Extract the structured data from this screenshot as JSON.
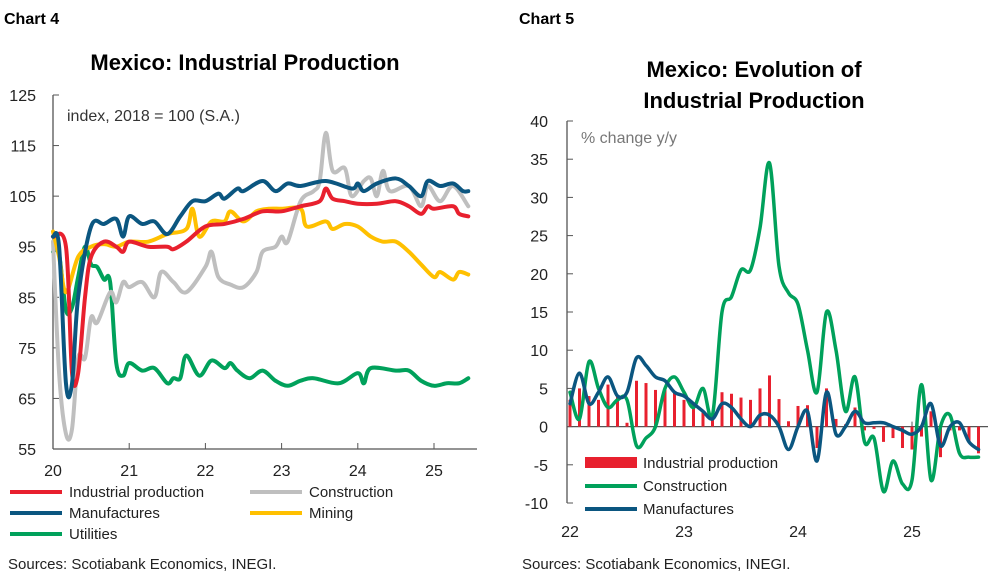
{
  "chart_data": [
    {
      "type": "line",
      "header": "Chart 4",
      "title": "Mexico: Industrial Production",
      "annotation": "index, 2018 = 100 (S.A.)",
      "source": "Sources: Scotiabank Economics, INEGI.",
      "xlim": [
        2020,
        2025.6
      ],
      "ylim": [
        55,
        125
      ],
      "x_tick_labels": [
        "20",
        "21",
        "22",
        "23",
        "24",
        "25"
      ],
      "y_ticks": [
        55,
        65,
        75,
        85,
        95,
        105,
        115,
        125
      ],
      "grid": false,
      "legend": "bottom",
      "series": [
        {
          "name": "Industrial production",
          "color": "#e8202e",
          "points": [
            [
              2020.0,
              97
            ],
            [
              2020.17,
              95
            ],
            [
              2020.25,
              70
            ],
            [
              2020.33,
              70
            ],
            [
              2020.42,
              85
            ],
            [
              2020.5,
              93
            ],
            [
              2020.67,
              96
            ],
            [
              2020.83,
              95
            ],
            [
              2020.92,
              94
            ],
            [
              2021.0,
              96
            ],
            [
              2021.25,
              95
            ],
            [
              2021.5,
              95
            ],
            [
              2021.58,
              94.5
            ],
            [
              2021.75,
              96
            ],
            [
              2022.0,
              99
            ],
            [
              2022.25,
              99.5
            ],
            [
              2022.5,
              100.5
            ],
            [
              2022.75,
              102
            ],
            [
              2023.0,
              102
            ],
            [
              2023.25,
              103
            ],
            [
              2023.5,
              104
            ],
            [
              2023.58,
              106.5
            ],
            [
              2023.67,
              104.5
            ],
            [
              2023.83,
              104
            ],
            [
              2024.0,
              103.5
            ],
            [
              2024.25,
              103.5
            ],
            [
              2024.5,
              104
            ],
            [
              2024.67,
              103
            ],
            [
              2024.83,
              101.5
            ],
            [
              2024.92,
              103
            ],
            [
              2025.0,
              102.5
            ],
            [
              2025.25,
              103
            ],
            [
              2025.33,
              101.5
            ],
            [
              2025.45,
              101
            ]
          ]
        },
        {
          "name": "Construction",
          "color": "#bfbfbf",
          "points": [
            [
              2020.0,
              96
            ],
            [
              2020.08,
              70
            ],
            [
              2020.17,
              58
            ],
            [
              2020.25,
              59
            ],
            [
              2020.33,
              73
            ],
            [
              2020.42,
              73
            ],
            [
              2020.5,
              81
            ],
            [
              2020.58,
              80
            ],
            [
              2020.75,
              86
            ],
            [
              2020.83,
              84
            ],
            [
              2020.92,
              88
            ],
            [
              2021.0,
              87
            ],
            [
              2021.17,
              88
            ],
            [
              2021.33,
              85
            ],
            [
              2021.42,
              90
            ],
            [
              2021.58,
              88
            ],
            [
              2021.75,
              86
            ],
            [
              2022.0,
              91
            ],
            [
              2022.08,
              94
            ],
            [
              2022.17,
              89
            ],
            [
              2022.33,
              87.5
            ],
            [
              2022.5,
              87
            ],
            [
              2022.67,
              90
            ],
            [
              2022.75,
              94
            ],
            [
              2022.92,
              95
            ],
            [
              2023.0,
              97
            ],
            [
              2023.08,
              96
            ],
            [
              2023.25,
              104
            ],
            [
              2023.42,
              106
            ],
            [
              2023.5,
              108
            ],
            [
              2023.58,
              117.5
            ],
            [
              2023.67,
              110
            ],
            [
              2023.83,
              110.5
            ],
            [
              2023.92,
              105
            ],
            [
              2024.08,
              108
            ],
            [
              2024.17,
              108.5
            ],
            [
              2024.25,
              105
            ],
            [
              2024.33,
              110
            ],
            [
              2024.42,
              106
            ],
            [
              2024.67,
              107
            ],
            [
              2024.83,
              103
            ],
            [
              2024.92,
              107
            ],
            [
              2025.08,
              104
            ],
            [
              2025.25,
              107
            ],
            [
              2025.45,
              103
            ]
          ]
        },
        {
          "name": "Manufactures",
          "color": "#0b5680",
          "points": [
            [
              2020.0,
              97
            ],
            [
              2020.08,
              95
            ],
            [
              2020.17,
              68
            ],
            [
              2020.25,
              68
            ],
            [
              2020.33,
              85
            ],
            [
              2020.5,
              99
            ],
            [
              2020.67,
              99.5
            ],
            [
              2020.83,
              100.5
            ],
            [
              2020.92,
              97
            ],
            [
              2021.0,
              101
            ],
            [
              2021.17,
              99.5
            ],
            [
              2021.33,
              100
            ],
            [
              2021.5,
              97.5
            ],
            [
              2021.67,
              101
            ],
            [
              2021.83,
              104
            ],
            [
              2022.0,
              104
            ],
            [
              2022.17,
              105.5
            ],
            [
              2022.25,
              104.5
            ],
            [
              2022.42,
              106.5
            ],
            [
              2022.5,
              106
            ],
            [
              2022.75,
              108
            ],
            [
              2022.92,
              106
            ],
            [
              2023.08,
              107.5
            ],
            [
              2023.25,
              107
            ],
            [
              2023.58,
              108
            ],
            [
              2023.92,
              106.5
            ],
            [
              2024.0,
              107.5
            ],
            [
              2024.08,
              106
            ],
            [
              2024.25,
              107.5
            ],
            [
              2024.5,
              108.5
            ],
            [
              2024.67,
              107
            ],
            [
              2024.83,
              105
            ],
            [
              2024.92,
              108
            ],
            [
              2025.08,
              107
            ],
            [
              2025.25,
              107.5
            ],
            [
              2025.38,
              106
            ],
            [
              2025.45,
              106
            ]
          ]
        },
        {
          "name": "Mining",
          "color": "#ffc000",
          "points": [
            [
              2020.0,
              98
            ],
            [
              2020.08,
              93
            ],
            [
              2020.17,
              86
            ],
            [
              2020.33,
              93
            ],
            [
              2020.5,
              95
            ],
            [
              2020.67,
              95.5
            ],
            [
              2020.83,
              95
            ],
            [
              2021.0,
              96
            ],
            [
              2021.25,
              96
            ],
            [
              2021.5,
              97.5
            ],
            [
              2021.75,
              98.5
            ],
            [
              2021.83,
              102.5
            ],
            [
              2021.92,
              97
            ],
            [
              2022.08,
              100
            ],
            [
              2022.25,
              100
            ],
            [
              2022.33,
              102
            ],
            [
              2022.5,
              100
            ],
            [
              2022.67,
              102
            ],
            [
              2022.83,
              102.5
            ],
            [
              2023.0,
              102.5
            ],
            [
              2023.25,
              102.5
            ],
            [
              2023.33,
              99
            ],
            [
              2023.58,
              100
            ],
            [
              2023.67,
              98.5
            ],
            [
              2023.83,
              99.5
            ],
            [
              2024.0,
              99
            ],
            [
              2024.17,
              97
            ],
            [
              2024.33,
              96
            ],
            [
              2024.5,
              96
            ],
            [
              2024.67,
              94
            ],
            [
              2024.83,
              91.5
            ],
            [
              2025.0,
              89
            ],
            [
              2025.08,
              90
            ],
            [
              2025.25,
              88.5
            ],
            [
              2025.33,
              90
            ],
            [
              2025.45,
              89.5
            ]
          ]
        },
        {
          "name": "Utilities",
          "color": "#00a15b",
          "points": [
            [
              2020.0,
              94
            ],
            [
              2020.08,
              93.5
            ],
            [
              2020.17,
              82.5
            ],
            [
              2020.25,
              83
            ],
            [
              2020.33,
              89
            ],
            [
              2020.42,
              95
            ],
            [
              2020.5,
              91.5
            ],
            [
              2020.58,
              91
            ],
            [
              2020.67,
              88.5
            ],
            [
              2020.75,
              88
            ],
            [
              2020.83,
              72
            ],
            [
              2020.92,
              69.5
            ],
            [
              2021.0,
              72
            ],
            [
              2021.17,
              70.5
            ],
            [
              2021.33,
              71
            ],
            [
              2021.5,
              68
            ],
            [
              2021.58,
              69
            ],
            [
              2021.67,
              69
            ],
            [
              2021.75,
              73.5
            ],
            [
              2021.92,
              69.5
            ],
            [
              2022.08,
              72.5
            ],
            [
              2022.25,
              71
            ],
            [
              2022.33,
              72
            ],
            [
              2022.42,
              70.5
            ],
            [
              2022.58,
              69
            ],
            [
              2022.75,
              70.5
            ],
            [
              2022.92,
              68.5
            ],
            [
              2023.08,
              67.5
            ],
            [
              2023.25,
              68.5
            ],
            [
              2023.42,
              69
            ],
            [
              2023.75,
              68
            ],
            [
              2024.0,
              70
            ],
            [
              2024.08,
              68
            ],
            [
              2024.17,
              71
            ],
            [
              2024.5,
              70.5
            ],
            [
              2024.67,
              70.5
            ],
            [
              2024.83,
              68.5
            ],
            [
              2025.0,
              67.5
            ],
            [
              2025.17,
              68
            ],
            [
              2025.33,
              68
            ],
            [
              2025.45,
              69
            ]
          ]
        }
      ]
    },
    {
      "type": "bar+line",
      "header": "Chart 5",
      "title": [
        "Mexico: Evolution of",
        "Industrial Production"
      ],
      "annotation": "% change y/y",
      "source": "Sources: Scotiabank Economics, INEGI.",
      "x_start": "2022-01",
      "x_tick_labels": [
        "22",
        "23",
        "24",
        "25"
      ],
      "ylim": [
        -10,
        40
      ],
      "y_ticks": [
        -10,
        -5,
        0,
        5,
        10,
        15,
        20,
        25,
        30,
        35,
        40
      ],
      "grid": false,
      "legend": "bottom-left",
      "bars": {
        "name": "Industrial production",
        "color": "#e8202e",
        "values": [
          3.5,
          5,
          4,
          3.5,
          5.5,
          4,
          0.5,
          6,
          5.7,
          4.8,
          5,
          4.5,
          3.5,
          3,
          2,
          1.5,
          4.5,
          4.3,
          3.8,
          3.5,
          5,
          6.7,
          3.6,
          0.7,
          2.7,
          2.8,
          -2.8,
          5,
          1,
          0.3,
          2.5,
          -0.5,
          -0.3,
          -2,
          -1.5,
          -2.8,
          -3,
          -1.3,
          2,
          -4,
          -0.5,
          -0.5,
          -2,
          -3.5
        ]
      },
      "series": [
        {
          "name": "Construction",
          "color": "#00a15b",
          "values": [
            4.5,
            1,
            8.5,
            5,
            2.5,
            3.5,
            3.5,
            -2.5,
            -1.5,
            0,
            5,
            6.5,
            4.5,
            2.5,
            5,
            1.5,
            15,
            17,
            20.5,
            20.5,
            26,
            34.5,
            21,
            17.5,
            16,
            10,
            4.5,
            15,
            10,
            2,
            6.5,
            -2,
            -1.5,
            -8.5,
            -4.5,
            -7.5,
            -7,
            5.5,
            -7,
            0,
            1.5,
            -3.5,
            -4,
            -4
          ]
        },
        {
          "name": "Manufactures",
          "color": "#0b5680",
          "values": [
            3,
            7,
            3,
            4.5,
            6.5,
            4,
            4.5,
            9,
            8,
            6.5,
            6,
            4.5,
            4,
            3,
            2,
            1,
            3,
            2.5,
            1,
            0,
            1.5,
            1.5,
            0,
            -3,
            0,
            2,
            -4.5,
            4.5,
            -1,
            0,
            2,
            0.5,
            0.5,
            0.5,
            0,
            -0.5,
            -1,
            0,
            3,
            -2.5,
            0,
            0.5,
            -2,
            -3
          ]
        }
      ]
    }
  ]
}
